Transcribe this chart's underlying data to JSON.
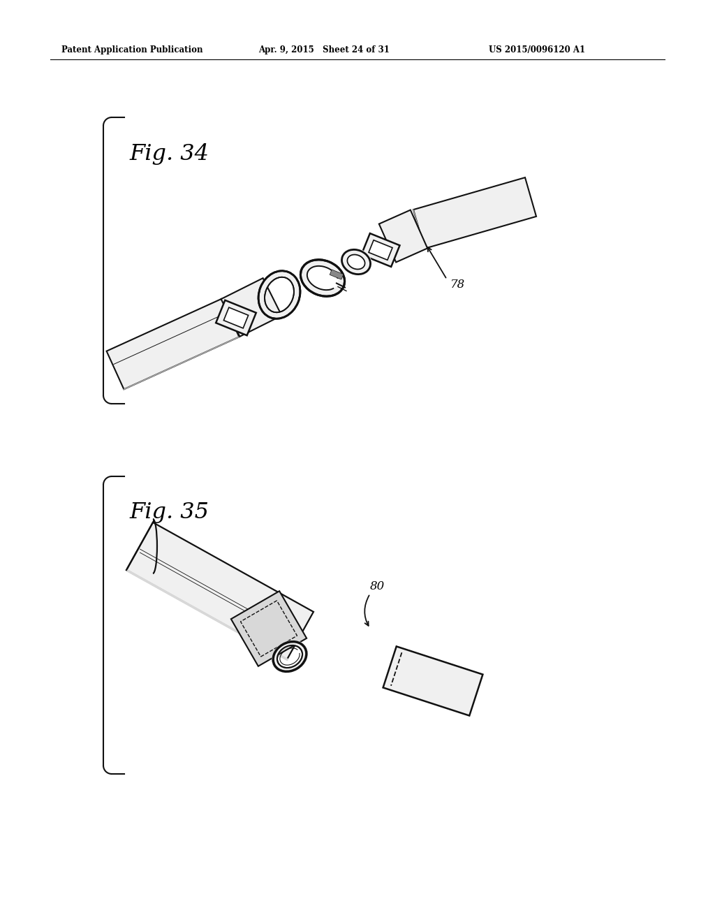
{
  "bg_color": "#ffffff",
  "line_color": "#111111",
  "fill_light": "#f0f0f0",
  "fill_medium": "#d8d8d8",
  "fill_dark": "#b8b8b8",
  "header_left": "Patent Application Publication",
  "header_mid": "Apr. 9, 2015   Sheet 24 of 31",
  "header_right": "US 2015/0096120 A1",
  "fig34_label": "Fig. 34",
  "fig35_label": "Fig. 35",
  "ref78": "78",
  "ref80": "80"
}
